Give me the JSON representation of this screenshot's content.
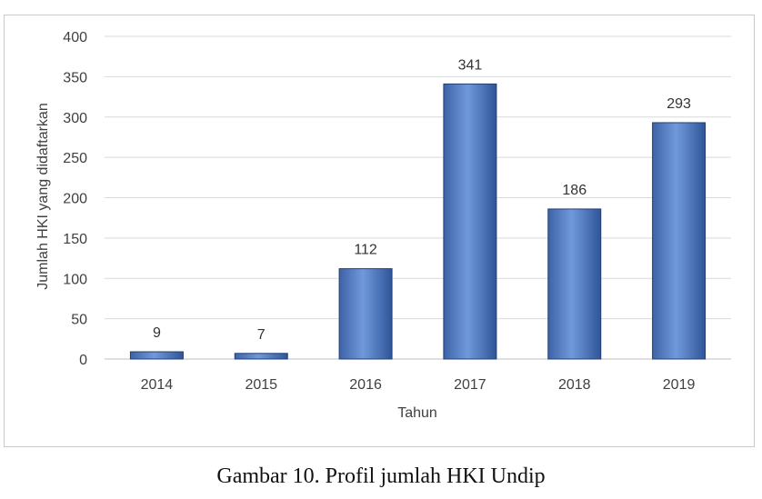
{
  "caption": "Gambar 10. Profil jumlah HKI Undip",
  "chart_data": {
    "type": "bar",
    "categories": [
      "2014",
      "2015",
      "2016",
      "2017",
      "2018",
      "2019"
    ],
    "values": [
      9,
      7,
      112,
      341,
      186,
      293
    ],
    "data_labels": [
      "9",
      "7",
      "112",
      "341",
      "186",
      "293"
    ],
    "title": "",
    "xlabel": "Tahun",
    "ylabel": "Jumlah HKI yang didaftarkan",
    "ylim": [
      0,
      400
    ],
    "yticks": [
      0,
      50,
      100,
      150,
      200,
      250,
      300,
      350,
      400
    ],
    "grid": true,
    "legend": "none",
    "colors": {
      "bar_light": "#6f95d8",
      "bar_dark": "#2e5597",
      "bar_edge": "#243f73",
      "grid": "#d9d9d9"
    }
  }
}
